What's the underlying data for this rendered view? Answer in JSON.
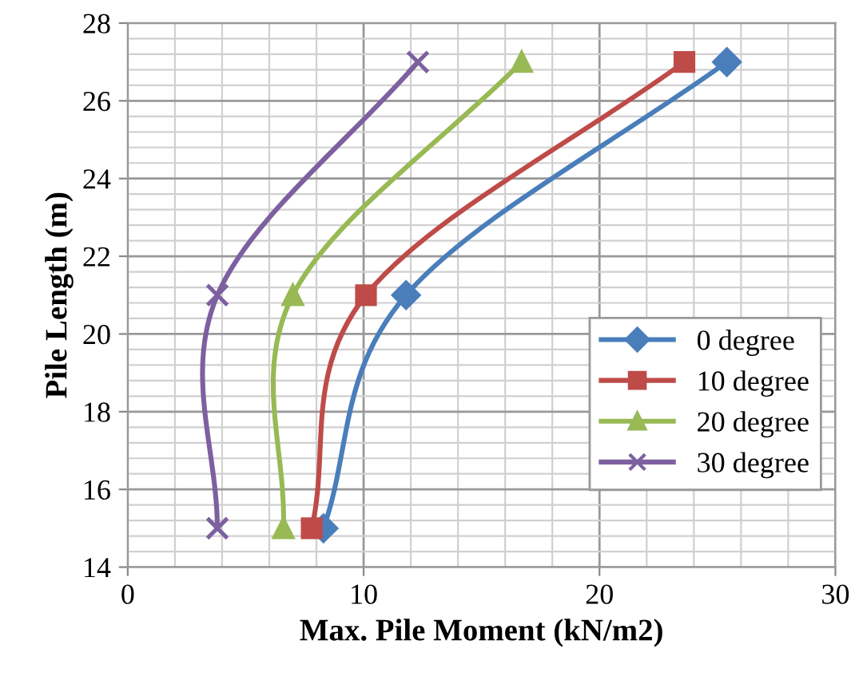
{
  "chart_data": {
    "type": "line",
    "xlabel": "Max. Pile Moment (kN/m2)",
    "ylabel": "Pile Length (m)",
    "xlim": [
      0,
      30
    ],
    "xticks": [
      0,
      10,
      20,
      30
    ],
    "ylim": [
      14,
      28
    ],
    "yticks": [
      14,
      16,
      18,
      20,
      22,
      24,
      26,
      28
    ],
    "grid": true,
    "legend": "right",
    "line_style": "solid",
    "series": [
      {
        "name": "0 degree",
        "color": "#4a7ebb",
        "marker": "diamond",
        "x": [
          8.3,
          11.8,
          25.4
        ],
        "values": [
          15,
          21,
          27
        ]
      },
      {
        "name": "10 degree",
        "color": "#be4b48",
        "marker": "square",
        "x": [
          7.8,
          10.1,
          23.6
        ],
        "values": [
          15,
          21,
          27
        ]
      },
      {
        "name": "20 degree",
        "color": "#98b954",
        "marker": "triangle",
        "x": [
          6.6,
          7.0,
          16.7
        ],
        "values": [
          15,
          21,
          27
        ]
      },
      {
        "name": "30 degree",
        "color": "#7d60a0",
        "marker": "cross",
        "x": [
          3.8,
          3.8,
          12.3
        ],
        "values": [
          15,
          21,
          27
        ]
      }
    ]
  }
}
